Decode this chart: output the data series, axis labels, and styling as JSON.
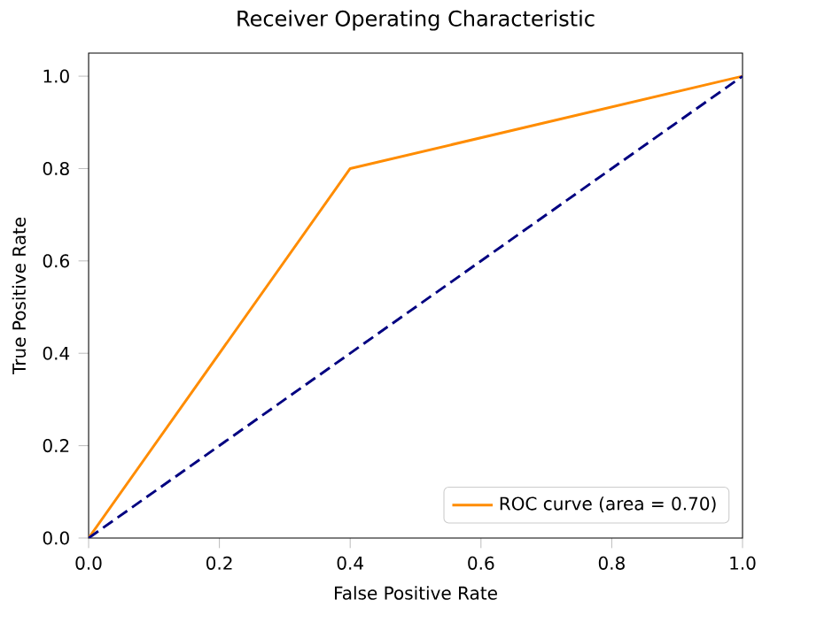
{
  "chart_data": {
    "type": "line",
    "title": "Receiver Operating Characteristic",
    "xlabel": "False Positive Rate",
    "ylabel": "True Positive Rate",
    "xlim": [
      0,
      1
    ],
    "ylim": [
      0,
      1.05
    ],
    "xticks": [
      {
        "value": 0,
        "label": "0.0"
      },
      {
        "value": 0.2,
        "label": "0.2"
      },
      {
        "value": 0.4,
        "label": "0.4"
      },
      {
        "value": 0.6,
        "label": "0.6"
      },
      {
        "value": 0.8,
        "label": "0.8"
      },
      {
        "value": 1,
        "label": "1.0"
      }
    ],
    "yticks": [
      {
        "value": 0,
        "label": "0.0"
      },
      {
        "value": 0.2,
        "label": "0.2"
      },
      {
        "value": 0.4,
        "label": "0.4"
      },
      {
        "value": 0.6,
        "label": "0.6"
      },
      {
        "value": 0.8,
        "label": "0.8"
      },
      {
        "value": 1,
        "label": "1.0"
      }
    ],
    "legend": "bottom right",
    "grid": false,
    "series": [
      {
        "name": "ROC curve (area = 0.70)",
        "color": "#ff8c00",
        "x": [
          0,
          0.4,
          1
        ],
        "values": [
          0,
          0.8,
          1
        ],
        "line_style": "solid"
      },
      {
        "color": "#000080",
        "x": [
          0,
          1
        ],
        "values": [
          0,
          1
        ],
        "line_style": "dashed"
      }
    ]
  }
}
